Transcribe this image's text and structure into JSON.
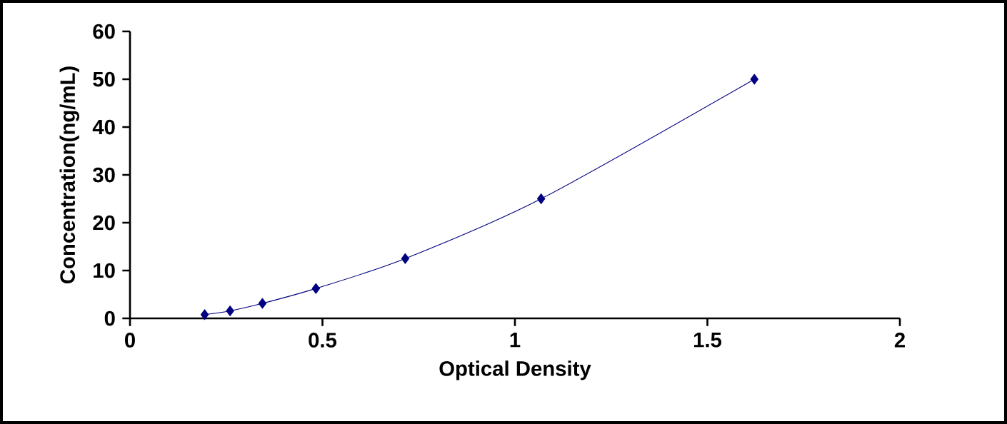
{
  "chart_data": {
    "type": "line",
    "xlabel": "Optical Density",
    "ylabel": "Concentration(ng/mL)",
    "x": [
      0.194,
      0.26,
      0.344,
      0.483,
      0.715,
      1.068,
      1.622
    ],
    "series": [
      {
        "color": "#000080",
        "values": [
          0.78,
          1.56,
          3.12,
          6.25,
          12.5,
          25,
          50
        ]
      }
    ],
    "xlim": [
      0,
      2
    ],
    "ylim": [
      0,
      60
    ],
    "xticks": [
      0,
      0.5,
      1,
      1.5,
      2
    ],
    "yticks": [
      0,
      10,
      20,
      30,
      40,
      50,
      60
    ],
    "marker": "diamond",
    "line_style": "solid",
    "grid": false,
    "legend": false
  }
}
